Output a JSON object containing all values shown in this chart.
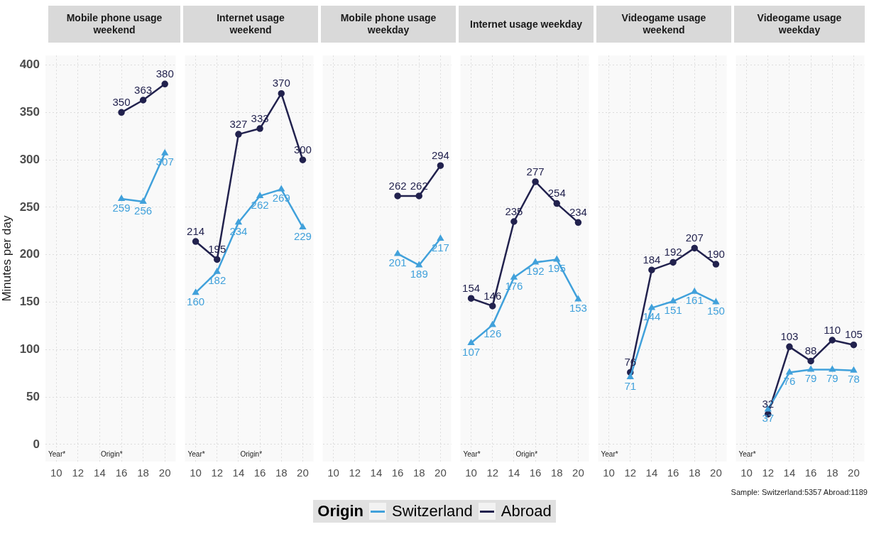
{
  "chart_data": [
    {
      "type": "line",
      "title": "Mobile phone usage weekend",
      "ylabel": "Minutes per day",
      "x": [
        16,
        18,
        20
      ],
      "xlim": [
        9,
        21
      ],
      "xticks": [
        10,
        12,
        14,
        16,
        18,
        20
      ],
      "ylim": [
        -18,
        410
      ],
      "yticks": [
        0,
        50,
        100,
        150,
        200,
        250,
        300,
        350,
        400
      ],
      "grid": true,
      "data_labels": true,
      "legend": "bottom",
      "legend_title": "Origin",
      "annotations": [
        "Year*",
        "Origin*"
      ],
      "series": [
        {
          "name": "Switzerland",
          "color": "#41a1db",
          "marker": "triangle",
          "values": [
            259,
            256,
            307
          ]
        },
        {
          "name": "Abroad",
          "color": "#22224e",
          "marker": "circle",
          "values": [
            350,
            363,
            380
          ]
        }
      ]
    },
    {
      "type": "line",
      "title": "Internet usage weekend",
      "x": [
        10,
        12,
        14,
        16,
        18,
        20
      ],
      "xlim": [
        9,
        21
      ],
      "xticks": [
        10,
        12,
        14,
        16,
        18,
        20
      ],
      "ylim": [
        -18,
        410
      ],
      "yticks": [
        0,
        50,
        100,
        150,
        200,
        250,
        300,
        350,
        400
      ],
      "tick_labels": "x",
      "grid": true,
      "data_labels": true,
      "annotations": [
        "Year*",
        "Origin*"
      ],
      "series": [
        {
          "name": "Switzerland",
          "color": "#41a1db",
          "marker": "triangle",
          "values": [
            160,
            182,
            234,
            262,
            269,
            229
          ]
        },
        {
          "name": "Abroad",
          "color": "#22224e",
          "marker": "circle",
          "values": [
            214,
            195,
            327,
            333,
            370,
            300
          ]
        }
      ]
    },
    {
      "type": "line",
      "title": "Mobile phone usage weekday",
      "x": [
        16,
        18,
        20
      ],
      "xlim": [
        9,
        21
      ],
      "xticks": [
        10,
        12,
        14,
        16,
        18,
        20
      ],
      "ylim": [
        -18,
        410
      ],
      "yticks": [
        0,
        50,
        100,
        150,
        200,
        250,
        300,
        350,
        400
      ],
      "tick_labels": "x",
      "grid": true,
      "data_labels": true,
      "series": [
        {
          "name": "Switzerland",
          "color": "#41a1db",
          "marker": "triangle",
          "values": [
            201,
            189,
            217
          ]
        },
        {
          "name": "Abroad",
          "color": "#22224e",
          "marker": "circle",
          "values": [
            262,
            262,
            294
          ]
        }
      ]
    },
    {
      "type": "line",
      "title": "Internet usage weekday",
      "x": [
        10,
        12,
        14,
        16,
        18,
        20
      ],
      "xlim": [
        9,
        21
      ],
      "xticks": [
        10,
        12,
        14,
        16,
        18,
        20
      ],
      "ylim": [
        -18,
        410
      ],
      "yticks": [
        0,
        50,
        100,
        150,
        200,
        250,
        300,
        350,
        400
      ],
      "tick_labels": "x",
      "grid": true,
      "data_labels": true,
      "annotations": [
        "Year*",
        "Origin*"
      ],
      "series": [
        {
          "name": "Switzerland",
          "color": "#41a1db",
          "marker": "triangle",
          "values": [
            107,
            126,
            176,
            192,
            195,
            153
          ]
        },
        {
          "name": "Abroad",
          "color": "#22224e",
          "marker": "circle",
          "values": [
            154,
            146,
            235,
            277,
            254,
            234
          ]
        }
      ]
    },
    {
      "type": "line",
      "title": "Videogame usage weekend",
      "x": [
        12,
        14,
        16,
        18,
        20
      ],
      "xlim": [
        9,
        21
      ],
      "xticks": [
        10,
        12,
        14,
        16,
        18,
        20
      ],
      "ylim": [
        -18,
        410
      ],
      "yticks": [
        0,
        50,
        100,
        150,
        200,
        250,
        300,
        350,
        400
      ],
      "tick_labels": "x",
      "grid": true,
      "data_labels": true,
      "annotations": [
        "Year*"
      ],
      "series": [
        {
          "name": "Switzerland",
          "color": "#41a1db",
          "marker": "triangle",
          "values": [
            71,
            144,
            151,
            161,
            150
          ]
        },
        {
          "name": "Abroad",
          "color": "#22224e",
          "marker": "circle",
          "values": [
            76,
            184,
            192,
            207,
            190
          ]
        }
      ]
    },
    {
      "type": "line",
      "title": "Videogame usage weekday",
      "x": [
        12,
        14,
        16,
        18,
        20
      ],
      "xlim": [
        9,
        21
      ],
      "xticks": [
        10,
        12,
        14,
        16,
        18,
        20
      ],
      "ylim": [
        -18,
        410
      ],
      "yticks": [
        0,
        50,
        100,
        150,
        200,
        250,
        300,
        350,
        400
      ],
      "tick_labels": "x",
      "grid": true,
      "data_labels": true,
      "annotations": [
        "Year*",
        "Sample: Switzerland:5357 Abroad:1189"
      ],
      "series": [
        {
          "name": "Switzerland",
          "color": "#41a1db",
          "marker": "triangle",
          "values": [
            37,
            76,
            79,
            79,
            78
          ]
        },
        {
          "name": "Abroad",
          "color": "#22224e",
          "marker": "circle",
          "values": [
            32,
            103,
            88,
            110,
            105
          ]
        }
      ]
    }
  ]
}
